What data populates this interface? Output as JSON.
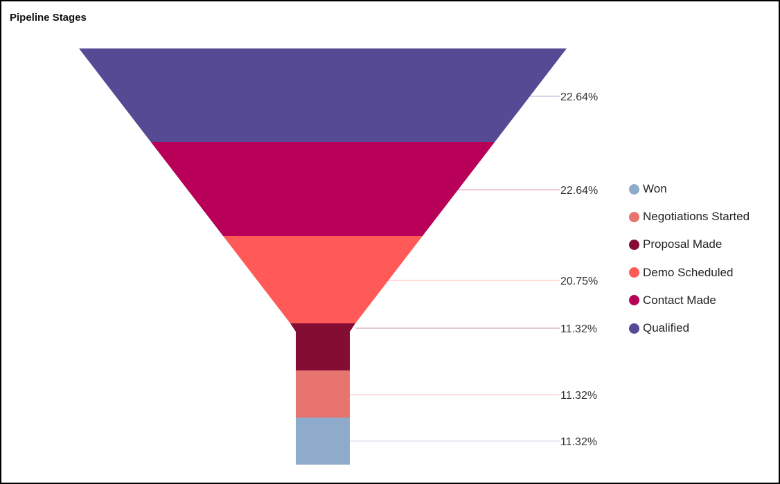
{
  "title": "Pipeline Stages",
  "chart_data": {
    "type": "funnel",
    "title": "Pipeline Stages",
    "stages": [
      "Qualified",
      "Contact Made",
      "Demo Scheduled",
      "Proposal Made",
      "Negotiations Started",
      "Won"
    ],
    "values_pct": [
      22.64,
      22.64,
      20.75,
      11.32,
      11.32,
      11.32
    ],
    "labels": [
      "22.64%",
      "22.64%",
      "20.75%",
      "11.32%",
      "11.32%",
      "11.32%"
    ],
    "colors": [
      "#554a93",
      "#b80058",
      "#ff5a57",
      "#840d34",
      "#e8746f",
      "#8fabcb"
    ],
    "legend_position": "right",
    "legend_order": [
      "Won",
      "Negotiations Started",
      "Proposal Made",
      "Demo Scheduled",
      "Contact Made",
      "Qualified"
    ]
  },
  "legend": [
    {
      "label": "Won",
      "color": "#8fabcb"
    },
    {
      "label": "Negotiations Started",
      "color": "#e8746f"
    },
    {
      "label": "Proposal Made",
      "color": "#840d34"
    },
    {
      "label": "Demo Scheduled",
      "color": "#ff5a57"
    },
    {
      "label": "Contact Made",
      "color": "#b80058"
    },
    {
      "label": "Qualified",
      "color": "#554a93"
    }
  ]
}
